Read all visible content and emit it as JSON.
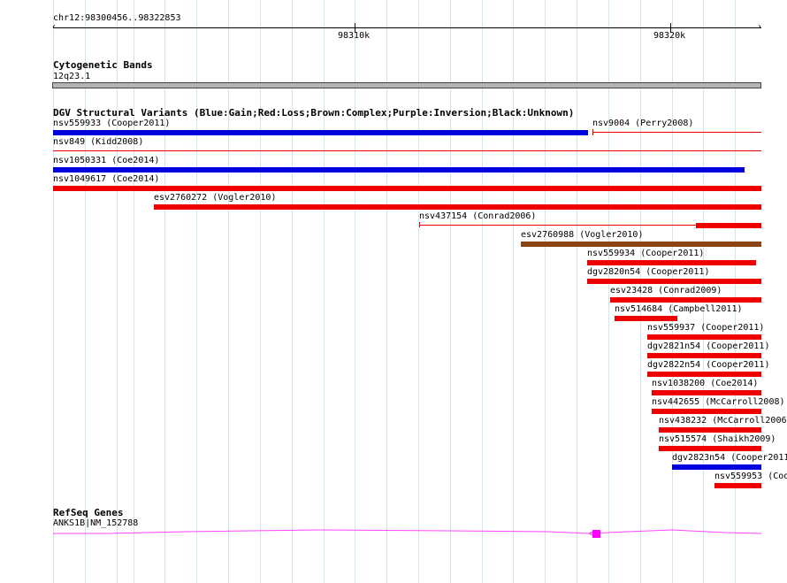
{
  "ruler": {
    "region_label": "chr12:98300456..98322853",
    "ticks": [
      {
        "label": "98310k"
      },
      {
        "label": "98320k"
      }
    ]
  },
  "cyto": {
    "title": "Cytogenetic Bands",
    "band_label": "12q23.1"
  },
  "dgv": {
    "title": "DGV Structural Variants (Blue:Gain;Red:Loss;Brown:Complex;Purple:Inversion;Black:Unknown)",
    "colors": {
      "gain": "#0000dd",
      "loss": "#ee0000",
      "complex": "#8b4513",
      "inversion": "#800080",
      "unknown": "#000000"
    },
    "variants": [
      {
        "label": "nsv559933 (Cooper2011)",
        "type": "gain"
      },
      {
        "label": "nsv9004 (Perry2008)",
        "type": "loss"
      },
      {
        "label": "nsv849 (Kidd2008)",
        "type": "loss"
      },
      {
        "label": "nsv1050331 (Coe2014)",
        "type": "gain"
      },
      {
        "label": "nsv1049617 (Coe2014)",
        "type": "loss"
      },
      {
        "label": "esv2760272 (Vogler2010)",
        "type": "loss"
      },
      {
        "label": "nsv437154 (Conrad2006)",
        "type": "loss"
      },
      {
        "label": "esv2760988 (Vogler2010)",
        "type": "complex"
      },
      {
        "label": "nsv559934 (Cooper2011)",
        "type": "loss"
      },
      {
        "label": "dgv2820n54 (Cooper2011)",
        "type": "loss"
      },
      {
        "label": "esv23428 (Conrad2009)",
        "type": "loss"
      },
      {
        "label": "nsv514684 (Campbell2011)",
        "type": "loss"
      },
      {
        "label": "nsv559937 (Cooper2011)",
        "type": "loss"
      },
      {
        "label": "dgv2821n54 (Cooper2011)",
        "type": "loss"
      },
      {
        "label": "dgv2822n54 (Cooper2011)",
        "type": "loss"
      },
      {
        "label": "nsv1038200 (Coe2014)",
        "type": "loss"
      },
      {
        "label": "nsv442655 (McCarroll2008)",
        "type": "loss"
      },
      {
        "label": "nsv438232 (McCarroll2006",
        "type": "loss"
      },
      {
        "label": "nsv515574 (Shaikh2009)",
        "type": "loss"
      },
      {
        "label": "dgv2823n54 (Cooper2011",
        "type": "gain"
      },
      {
        "label": "nsv559953 (Coo",
        "type": "loss"
      }
    ]
  },
  "refseq": {
    "title": "RefSeq Genes",
    "gene_label": "ANKS1B|NM_152788",
    "color": "#ff00ff"
  }
}
